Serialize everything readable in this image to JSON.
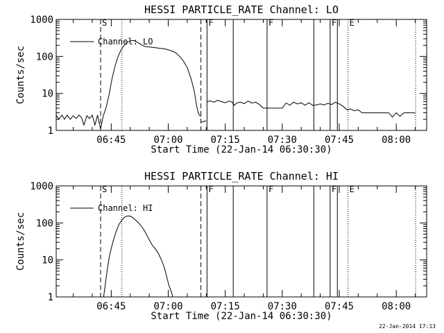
{
  "footer": {
    "timestamp": "22-Jan-2014 17:13"
  },
  "chart_data": [
    {
      "type": "line",
      "title": "HESSI PARTICLE_RATE Channel: LO",
      "xlabel": "Start Time (22-Jan-14 06:30:30)",
      "ylabel": "Counts/sec",
      "yscale": "log",
      "xlim": [
        0.51,
        98
      ],
      "ylim": [
        1,
        1000
      ],
      "x_unit": "minutes after 06:30:00",
      "xticks": [
        {
          "x": 15,
          "label": "06:45"
        },
        {
          "x": 30,
          "label": "07:00"
        },
        {
          "x": 45,
          "label": "07:15"
        },
        {
          "x": 60,
          "label": "07:30"
        },
        {
          "x": 75,
          "label": "07:45"
        },
        {
          "x": 90,
          "label": "08:00"
        }
      ],
      "yticks": [
        {
          "y": 1,
          "label": "1"
        },
        {
          "y": 10,
          "label": "10"
        },
        {
          "y": 100,
          "label": "100"
        },
        {
          "y": 1000,
          "label": "1000"
        }
      ],
      "legend": {
        "entry": "Channel: LO",
        "placement": "top-left"
      },
      "event_lines": [
        {
          "x": 12.2,
          "style": "dashed",
          "label": "S"
        },
        {
          "x": 17.8,
          "style": "dotted",
          "label": ""
        },
        {
          "x": 38.6,
          "style": "dashed",
          "label": ""
        },
        {
          "x": 40.2,
          "style": "solid",
          "label": "F"
        },
        {
          "x": 47.1,
          "style": "solid",
          "label": ""
        },
        {
          "x": 56.0,
          "style": "solid",
          "label": "F"
        },
        {
          "x": 68.3,
          "style": "solid",
          "label": ""
        },
        {
          "x": 72.6,
          "style": "solid",
          "label": "F"
        },
        {
          "x": 74.5,
          "style": "solid",
          "label": ""
        },
        {
          "x": 77.3,
          "style": "dotted",
          "label": "E"
        },
        {
          "x": 95.1,
          "style": "dotted",
          "label": ""
        }
      ],
      "series": [
        {
          "name": "Channel: LO",
          "segments": [
            {
              "x": [
                0.5,
                1.2,
                2.0,
                2.7,
                3.4,
                4.2,
                5.0,
                5.8,
                6.5,
                7.2,
                7.8,
                8.6,
                9.3,
                10.0,
                10.7,
                11.4,
                12.2,
                12.9,
                13.6,
                14.4,
                15.2,
                16.0,
                16.8,
                17.6,
                18.4,
                19.2,
                20.0,
                20.8,
                21.6,
                22.4,
                23.2,
                24.0,
                25.0,
                26.0,
                27.0,
                28.0,
                29.0,
                30.0,
                31.0,
                32.0,
                33.0,
                34.0,
                35.0,
                36.0,
                36.8,
                37.4,
                37.8,
                38.2,
                38.6
              ],
              "y": [
                2.6,
                2.0,
                2.6,
                2.0,
                2.6,
                2.0,
                2.5,
                2.1,
                2.6,
                2.2,
                1.4,
                2.5,
                2.1,
                2.6,
                1.4,
                2.6,
                1.1,
                2.5,
                4,
                9,
                25,
                55,
                100,
                150,
                200,
                240,
                265,
                270,
                250,
                225,
                200,
                185,
                180,
                175,
                170,
                165,
                160,
                150,
                140,
                125,
                100,
                75,
                50,
                25,
                12,
                5,
                3.2,
                2.6,
                2.4
              ]
            },
            {
              "x": [
                38.7,
                39.2,
                39.6,
                40.0
              ],
              "y": [
                1.7,
                1.7,
                1.8,
                1.8
              ]
            },
            {
              "x": [
                40.2,
                41.0,
                42.0,
                43.0,
                44.0,
                45.0,
                46.0,
                46.8,
                47.4,
                48.0,
                49.0,
                50.0,
                51.0,
                52.0,
                53.0,
                54.0,
                55.0,
                56.0,
                57.0,
                58.0,
                59.0,
                60.0,
                61.0,
                62.0,
                63.0,
                64.0,
                65.0,
                66.0,
                67.0,
                68.0,
                69.0,
                70.0,
                71.0,
                72.0,
                73.0,
                74.0,
                75.0,
                76.0,
                77.0,
                78.0,
                79.0,
                80.0,
                81.0,
                82.0,
                83.0,
                84.0,
                85.0,
                86.0,
                87.0,
                88.0,
                89.0,
                90.0,
                91.0,
                92.0,
                93.0,
                94.0,
                95.0
              ],
              "y": [
                6.0,
                6.3,
                5.8,
                6.5,
                6.0,
                5.6,
                6.2,
                5.8,
                4.8,
                5.5,
                5.8,
                5.3,
                6.2,
                5.5,
                5.8,
                5.0,
                4.0,
                4.0,
                4.0,
                4.0,
                4.0,
                4.0,
                5.5,
                4.8,
                5.8,
                5.2,
                5.6,
                4.8,
                5.6,
                4.8,
                4.9,
                5.2,
                4.9,
                5.4,
                5.0,
                5.8,
                5.2,
                4.5,
                3.6,
                3.8,
                3.4,
                3.6,
                3.0,
                3.0,
                3.0,
                3.0,
                3.0,
                3.0,
                3.0,
                3.0,
                2.3,
                3.0,
                2.4,
                3.0,
                3.0,
                3.0,
                3.0
              ]
            }
          ]
        }
      ]
    },
    {
      "type": "line",
      "title": "HESSI PARTICLE_RATE Channel: HI",
      "xlabel": "Start Time (22-Jan-14 06:30:30)",
      "ylabel": "Counts/sec",
      "yscale": "log",
      "xlim": [
        0.51,
        98
      ],
      "ylim": [
        1,
        1000
      ],
      "x_unit": "minutes after 06:30:00",
      "xticks": [
        {
          "x": 15,
          "label": "06:45"
        },
        {
          "x": 30,
          "label": "07:00"
        },
        {
          "x": 45,
          "label": "07:15"
        },
        {
          "x": 60,
          "label": "07:30"
        },
        {
          "x": 75,
          "label": "07:45"
        },
        {
          "x": 90,
          "label": "08:00"
        }
      ],
      "yticks": [
        {
          "y": 1,
          "label": "1"
        },
        {
          "y": 10,
          "label": "10"
        },
        {
          "y": 100,
          "label": "100"
        },
        {
          "y": 1000,
          "label": "1000"
        }
      ],
      "legend": {
        "entry": "Channel: HI",
        "placement": "top-left"
      },
      "event_lines": [
        {
          "x": 12.2,
          "style": "dashed",
          "label": "S"
        },
        {
          "x": 17.8,
          "style": "dotted",
          "label": ""
        },
        {
          "x": 38.6,
          "style": "dashed",
          "label": ""
        },
        {
          "x": 40.2,
          "style": "solid",
          "label": "F"
        },
        {
          "x": 47.1,
          "style": "solid",
          "label": ""
        },
        {
          "x": 56.0,
          "style": "solid",
          "label": "F"
        },
        {
          "x": 68.3,
          "style": "solid",
          "label": ""
        },
        {
          "x": 72.6,
          "style": "solid",
          "label": "F"
        },
        {
          "x": 74.5,
          "style": "solid",
          "label": ""
        },
        {
          "x": 77.3,
          "style": "dotted",
          "label": "E"
        },
        {
          "x": 95.1,
          "style": "dotted",
          "label": ""
        }
      ],
      "series": [
        {
          "name": "Channel: HI",
          "segments": [
            {
              "x": [
                13.0,
                13.5,
                14.0,
                14.6,
                15.4,
                16.2,
                17.0,
                17.8,
                18.6,
                19.4,
                20.2,
                21.0,
                21.8,
                22.6,
                23.4,
                24.2,
                25.0,
                25.8,
                26.6,
                27.4,
                28.2,
                29.0,
                29.6,
                30.2,
                30.8,
                31.2
              ],
              "y": [
                1.0,
                2.5,
                6,
                14,
                30,
                55,
                90,
                120,
                145,
                155,
                150,
                130,
                110,
                90,
                70,
                50,
                35,
                25,
                20,
                15,
                10,
                6,
                3.5,
                2.0,
                1.4,
                1.0
              ]
            }
          ]
        }
      ]
    }
  ]
}
